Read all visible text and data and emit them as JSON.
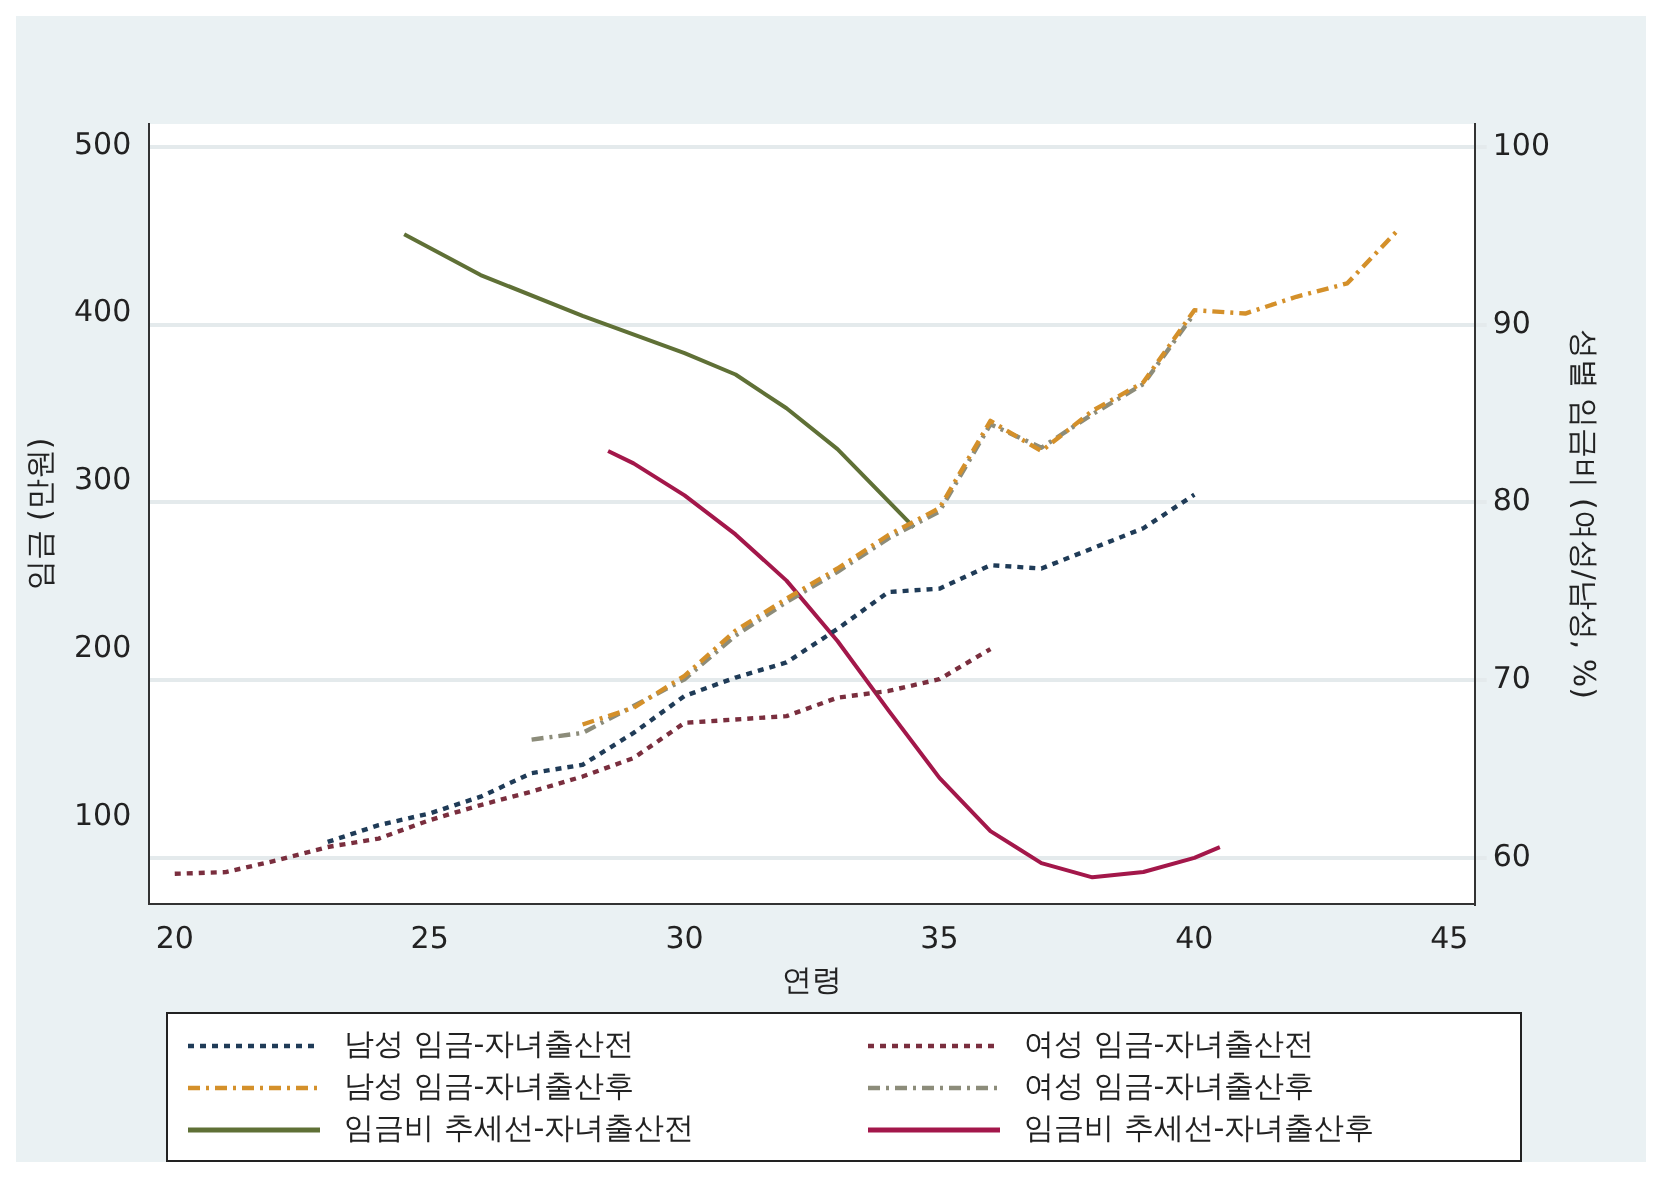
{
  "chart_data": {
    "type": "line",
    "xlabel": "연령",
    "ylabel": "임금 (만원)",
    "y2label": "성별 임금비 (여성/남성, %)",
    "xlim": [
      19.5,
      45.5
    ],
    "xticks": [
      20,
      25,
      30,
      35,
      40,
      45
    ],
    "ylim": [
      48,
      513
    ],
    "yticks": [
      100,
      200,
      300,
      400,
      500
    ],
    "y2lim": [
      57.4,
      101.3
    ],
    "y2ticks": [
      60,
      70,
      80,
      90,
      100
    ],
    "grid": "y",
    "legend": "bottom",
    "marker": "none",
    "series": [
      {
        "name": "남성 임금-자녀출산전",
        "color": "#1f3b57",
        "line_style": "dotted",
        "x": [
          23,
          24,
          25,
          26,
          27,
          28,
          29,
          30,
          31,
          32,
          33,
          34,
          35,
          36,
          37,
          38,
          39,
          40
        ],
        "values": [
          85,
          95,
          102,
          112,
          126,
          131,
          150,
          172,
          183,
          192,
          212,
          234,
          236,
          250,
          248,
          260,
          272,
          292
        ]
      },
      {
        "name": "여성 임금-자녀출산전",
        "color": "#7a2e3e",
        "line_style": "dotted",
        "x": [
          20,
          21,
          22,
          23,
          24,
          25,
          26,
          27,
          28,
          29,
          30,
          31,
          32,
          33,
          34,
          35,
          36
        ],
        "values": [
          66,
          67,
          74,
          82,
          87,
          98,
          107,
          115,
          124,
          135,
          156,
          158,
          160,
          171,
          175,
          182,
          200
        ]
      },
      {
        "name": "남성 임금-자녀출산후",
        "color": "#d4902a",
        "line_style": "dashed",
        "x": [
          28,
          29,
          30,
          31,
          32,
          33,
          34,
          35,
          36,
          37,
          38,
          39,
          40,
          41,
          42,
          43,
          44
        ],
        "values": [
          155,
          165,
          184,
          211,
          230,
          248,
          268,
          284,
          336,
          318,
          342,
          359,
          402,
          400,
          410,
          418,
          450
        ]
      },
      {
        "name": "여성 임금-자녀출산후",
        "color": "#8c8c7a",
        "line_style": "dashed",
        "x": [
          27,
          28,
          29,
          30,
          31,
          32,
          33,
          34,
          35,
          36,
          37,
          38,
          39,
          40
        ],
        "values": [
          146,
          150,
          166,
          182,
          208,
          228,
          246,
          266,
          282,
          334,
          320,
          340,
          358,
          400
        ]
      },
      {
        "name": "임금비 추세선-자녀출산전",
        "color": "#5f7036",
        "line_style": "solid",
        "axis": "y2",
        "x": [
          24.5,
          26,
          28,
          30,
          31,
          32,
          33,
          34.5
        ],
        "values": [
          95.1,
          92.8,
          90.5,
          88.4,
          87.2,
          85.3,
          83.0,
          78.6
        ]
      },
      {
        "name": "임금비 추세선-자녀출산후",
        "color": "#a3174a",
        "line_style": "solid",
        "axis": "y2",
        "x": [
          28.5,
          29,
          30,
          31,
          32,
          33,
          34,
          35,
          36,
          37,
          38,
          39,
          40,
          40.5
        ],
        "values": [
          82.9,
          82.2,
          80.4,
          78.2,
          75.6,
          72.2,
          68.3,
          64.5,
          61.5,
          59.7,
          58.9,
          59.2,
          60.0,
          60.6
        ]
      }
    ]
  }
}
